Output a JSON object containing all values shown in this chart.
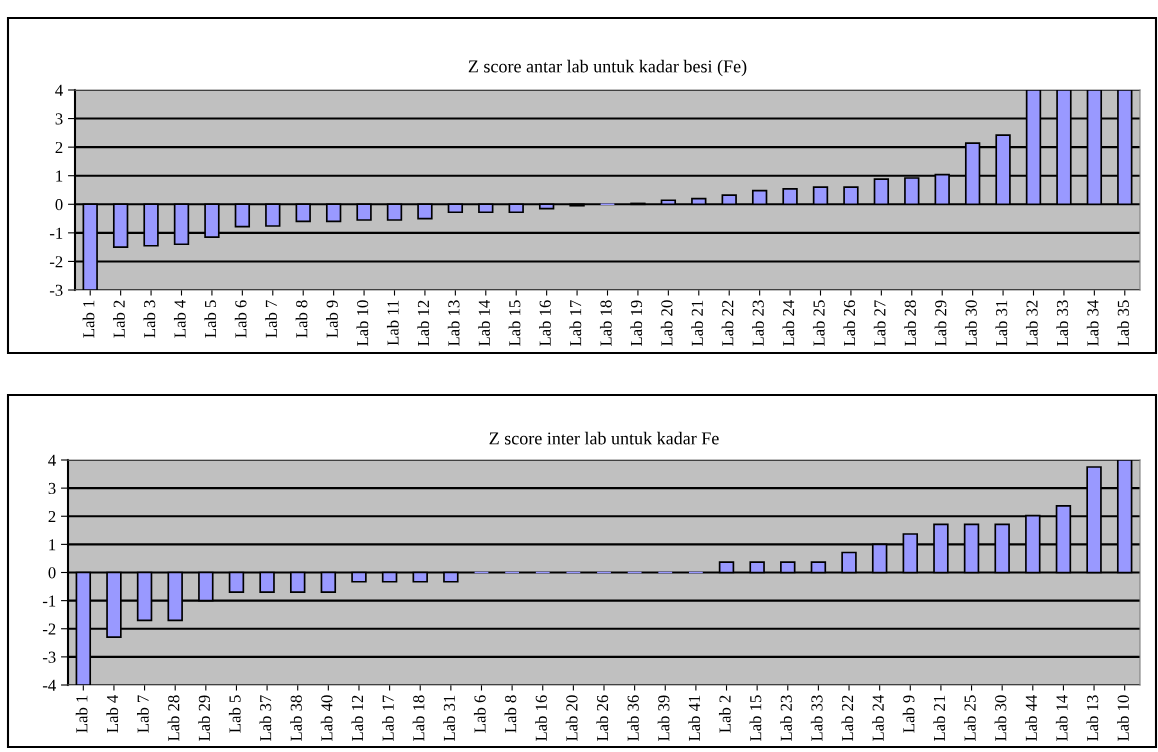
{
  "chart_data": [
    {
      "type": "bar",
      "title": "Z score antar lab untuk kadar besi (Fe)",
      "categories": [
        "Lab 1",
        "Lab 2",
        "Lab 3",
        "Lab 4",
        "Lab 5",
        "Lab 6",
        "Lab 7",
        "Lab 8",
        "Lab 9",
        "Lab 10",
        "Lab 11",
        "Lab 12",
        "Lab 13",
        "Lab 14",
        "Lab 15",
        "Lab 16",
        "Lab 17",
        "Lab 18",
        "Lab 19",
        "Lab 20",
        "Lab 21",
        "Lab 22",
        "Lab 23",
        "Lab 24",
        "Lab 25",
        "Lab 26",
        "Lab 27",
        "Lab 28",
        "Lab 29",
        "Lab 30",
        "Lab 31",
        "Lab 32",
        "Lab 33",
        "Lab 34",
        "Lab 35"
      ],
      "values": [
        -3,
        -1.5,
        -1.45,
        -1.4,
        -1.15,
        -0.78,
        -0.76,
        -0.6,
        -0.6,
        -0.55,
        -0.55,
        -0.5,
        -0.28,
        -0.28,
        -0.28,
        -0.15,
        -0.05,
        0,
        0.03,
        0.14,
        0.2,
        0.32,
        0.48,
        0.54,
        0.6,
        0.6,
        0.88,
        0.92,
        1.04,
        2.14,
        2.42,
        4,
        4,
        4,
        4
      ],
      "color": "#9999ff",
      "ylim": [
        -3,
        4
      ],
      "yticks": [
        -3,
        -2,
        -1,
        0,
        1,
        2,
        3,
        4
      ],
      "grid": "y"
    },
    {
      "type": "bar",
      "title": "Z score inter lab untuk kadar Fe",
      "categories": [
        "Lab 1",
        "Lab 4",
        "Lab 7",
        "Lab 28",
        "Lab 29",
        "Lab 5",
        "Lab 37",
        "Lab 38",
        "Lab 40",
        "Lab 12",
        "Lab 17",
        "Lab 18",
        "Lab 31",
        "Lab 6",
        "Lab 8",
        "Lab 16",
        "Lab 20",
        "Lab 26",
        "Lab 36",
        "Lab 39",
        "Lab 41",
        "Lab 2",
        "Lab 15",
        "Lab 23",
        "Lab 33",
        "Lab 22",
        "Lab 24",
        "Lab 9",
        "Lab 21",
        "Lab 25",
        "Lab 30",
        "Lab 44",
        "Lab 14",
        "Lab 13",
        "Lab 10"
      ],
      "values": [
        -4,
        -2.3,
        -1.7,
        -1.7,
        -1.0,
        -0.7,
        -0.7,
        -0.7,
        -0.7,
        -0.33,
        -0.33,
        -0.33,
        -0.33,
        0,
        0,
        0,
        0,
        0,
        0,
        0,
        0,
        0.37,
        0.37,
        0.37,
        0.37,
        0.71,
        1.0,
        1.37,
        1.71,
        1.71,
        1.71,
        2.02,
        2.37,
        3.75,
        4
      ],
      "color": "#9999ff",
      "ylim": [
        -4,
        4
      ],
      "yticks": [
        -4,
        -3,
        -2,
        -1,
        0,
        1,
        2,
        3,
        4
      ],
      "grid": "y"
    }
  ]
}
